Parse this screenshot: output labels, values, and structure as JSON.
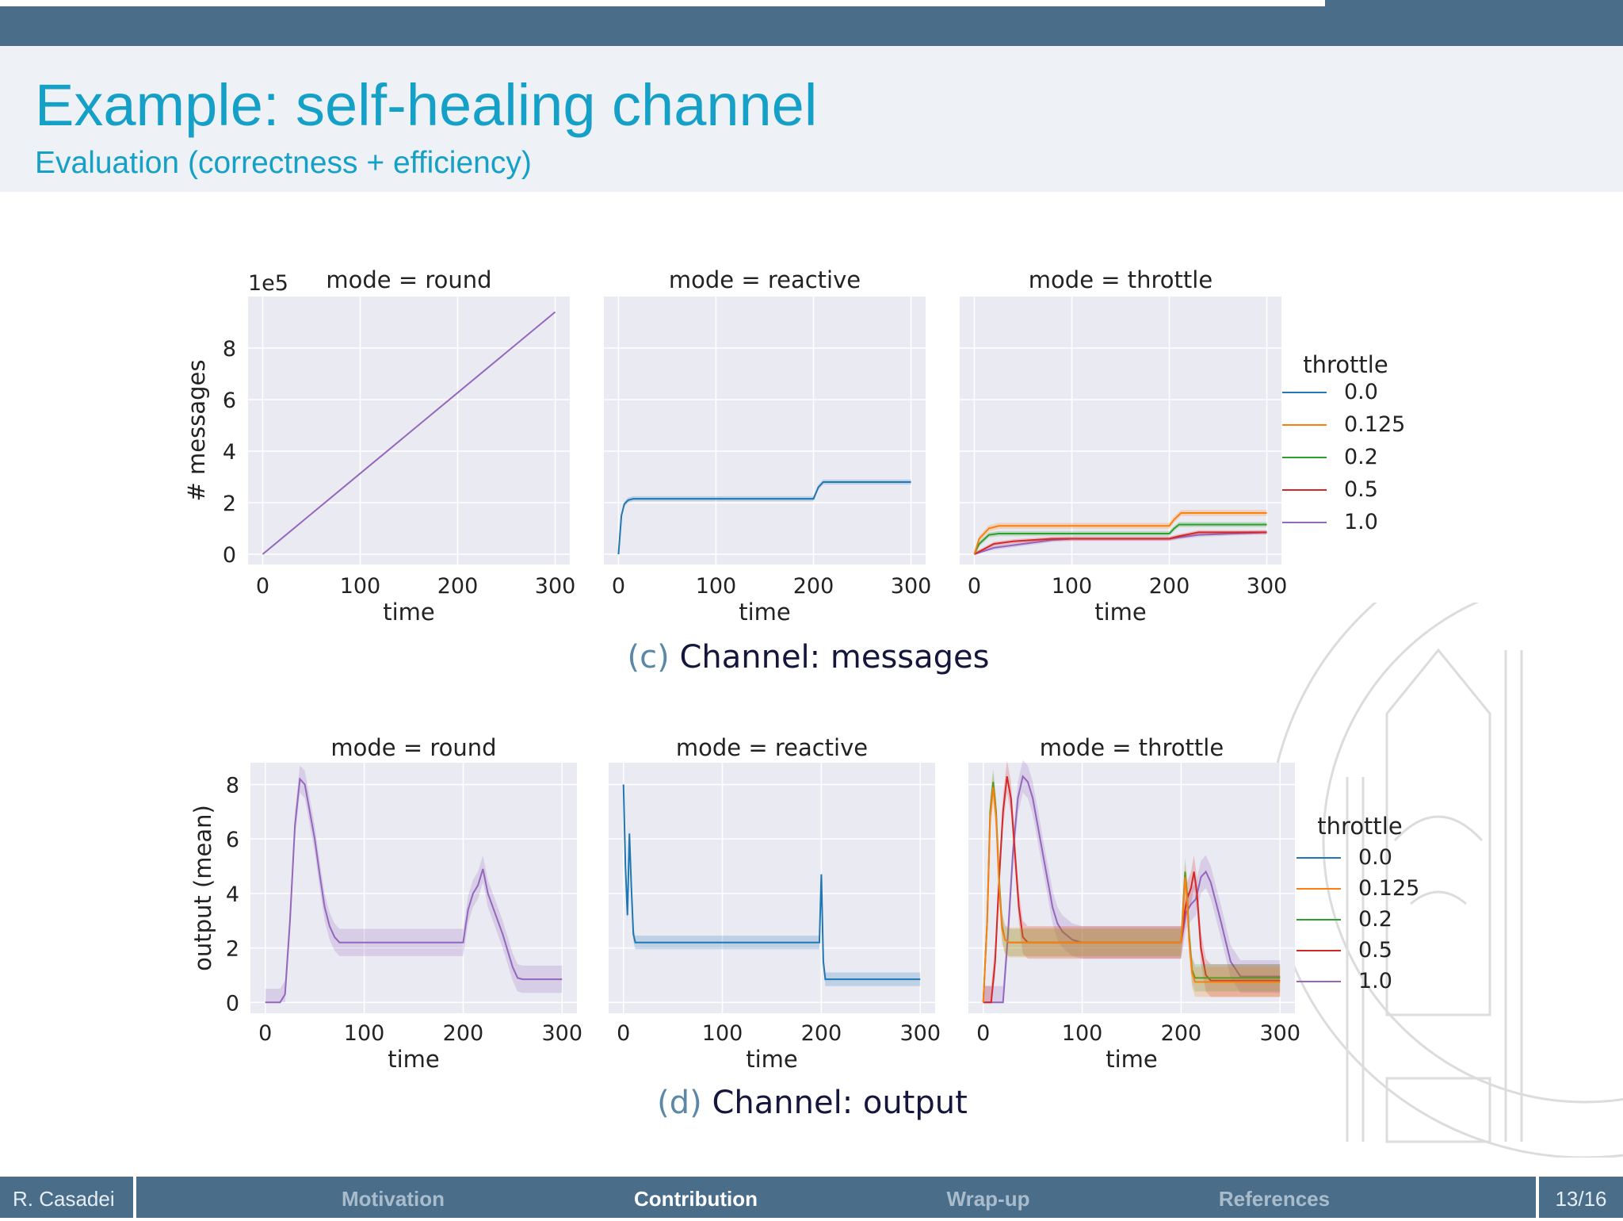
{
  "slide": {
    "title": "Example: self-healing channel",
    "subtitle": "Evaluation (correctness + efficiency)"
  },
  "footer": {
    "author": "R. Casadei",
    "nav": [
      {
        "label": "Motivation",
        "active": false
      },
      {
        "label": "Contribution",
        "active": true
      },
      {
        "label": "Wrap-up",
        "active": false
      },
      {
        "label": "References",
        "active": false
      }
    ],
    "page": "13/16"
  },
  "colors": {
    "bar": "#4a6d8a",
    "title": "#15a0c7",
    "panel_bg": "#eaeaf2",
    "caption_letter": "#5a88a6",
    "caption_text": "#14163c"
  },
  "chart_data": [
    {
      "type": "line",
      "caption_label": "(c)",
      "caption_text": "Channel: messages",
      "ylabel": "# messages",
      "yscale_note": "1e5",
      "yticks": [
        "0",
        "2",
        "4",
        "6",
        "8"
      ],
      "ylim": [
        -0.4,
        10.0
      ],
      "xlim": [
        -15,
        315
      ],
      "xticks": [
        "0",
        "100",
        "200",
        "300"
      ],
      "xlabel": "time",
      "legend": {
        "title": "throttle",
        "placement": "right",
        "entries": [
          "0.0",
          "0.125",
          "0.2",
          "0.5",
          "1.0"
        ],
        "colors": [
          "#1f77b4",
          "#ff7f0e",
          "#2ca02c",
          "#d62728",
          "#9467bd"
        ]
      },
      "panels": [
        {
          "title": "mode = round",
          "series": [
            {
              "color": "#9467bd",
              "band": 0,
              "x": [
                0,
                300
              ],
              "y": [
                0,
                9.4
              ]
            }
          ]
        },
        {
          "title": "mode = reactive",
          "series": [
            {
              "color": "#1f77b4",
              "band": 0.1,
              "x": [
                0,
                3,
                6,
                10,
                15,
                50,
                100,
                150,
                200,
                205,
                210,
                250,
                300
              ],
              "y": [
                0,
                1.5,
                1.95,
                2.1,
                2.15,
                2.15,
                2.15,
                2.15,
                2.15,
                2.6,
                2.8,
                2.8,
                2.8
              ]
            }
          ]
        },
        {
          "title": "mode = throttle",
          "series": [
            {
              "color": "#9467bd",
              "band": 0.08,
              "x": [
                0,
                20,
                40,
                60,
                80,
                100,
                150,
                200,
                230,
                300
              ],
              "y": [
                0,
                0.25,
                0.35,
                0.45,
                0.55,
                0.6,
                0.6,
                0.6,
                0.75,
                0.85
              ]
            },
            {
              "color": "#d62728",
              "band": 0.08,
              "x": [
                0,
                20,
                40,
                60,
                80,
                100,
                150,
                200,
                210,
                230,
                300
              ],
              "y": [
                0,
                0.4,
                0.5,
                0.55,
                0.6,
                0.6,
                0.6,
                0.6,
                0.7,
                0.85,
                0.85
              ]
            },
            {
              "color": "#2ca02c",
              "band": 0.1,
              "x": [
                0,
                5,
                15,
                25,
                100,
                200,
                205,
                210,
                300
              ],
              "y": [
                0,
                0.4,
                0.75,
                0.8,
                0.8,
                0.8,
                1.0,
                1.15,
                1.15
              ]
            },
            {
              "color": "#ff7f0e",
              "band": 0.12,
              "x": [
                0,
                5,
                15,
                25,
                100,
                200,
                205,
                212,
                300
              ],
              "y": [
                0,
                0.6,
                1.0,
                1.1,
                1.1,
                1.1,
                1.35,
                1.6,
                1.6
              ]
            }
          ]
        }
      ]
    },
    {
      "type": "line",
      "caption_label": "(d)",
      "caption_text": "Channel: output",
      "ylabel": "output (mean)",
      "yscale_note": "",
      "yticks": [
        "0",
        "2",
        "4",
        "6",
        "8"
      ],
      "ylim": [
        -0.4,
        8.8
      ],
      "xlim": [
        -15,
        315
      ],
      "xticks": [
        "0",
        "100",
        "200",
        "300"
      ],
      "xlabel": "time",
      "legend": {
        "title": "throttle",
        "placement": "right",
        "entries": [
          "0.0",
          "0.125",
          "0.2",
          "0.5",
          "1.0"
        ],
        "colors": [
          "#1f77b4",
          "#ff7f0e",
          "#2ca02c",
          "#d62728",
          "#9467bd"
        ]
      },
      "panels": [
        {
          "title": "mode = round",
          "series": [
            {
              "color": "#9467bd",
              "band": 0.5,
              "x": [
                0,
                15,
                20,
                25,
                30,
                35,
                40,
                45,
                50,
                55,
                60,
                65,
                70,
                75,
                80,
                100,
                150,
                200,
                205,
                210,
                215,
                220,
                225,
                230,
                240,
                250,
                255,
                260,
                300
              ],
              "y": [
                0,
                0,
                0.3,
                3,
                6.5,
                8.2,
                8.0,
                7.0,
                6.0,
                4.7,
                3.5,
                2.8,
                2.4,
                2.2,
                2.2,
                2.2,
                2.2,
                2.2,
                3.4,
                4.0,
                4.3,
                4.9,
                4.0,
                3.5,
                2.5,
                1.3,
                0.9,
                0.85,
                0.85
              ]
            }
          ]
        },
        {
          "title": "mode = reactive",
          "series": [
            {
              "color": "#1f77b4",
              "band": 0.25,
              "x": [
                0,
                2,
                4,
                6,
                8,
                10,
                12,
                15,
                50,
                100,
                150,
                195,
                198,
                200,
                202,
                204,
                206,
                250,
                300
              ],
              "y": [
                8,
                5,
                3.2,
                6.2,
                4.2,
                2.5,
                2.2,
                2.2,
                2.2,
                2.2,
                2.2,
                2.2,
                2.2,
                4.7,
                1.5,
                0.85,
                0.85,
                0.85,
                0.85
              ]
            }
          ]
        },
        {
          "title": "mode = throttle",
          "series": [
            {
              "color": "#9467bd",
              "band": 0.6,
              "x": [
                0,
                20,
                25,
                30,
                35,
                40,
                45,
                50,
                55,
                60,
                65,
                70,
                75,
                80,
                90,
                100,
                150,
                200,
                205,
                210,
                215,
                220,
                225,
                230,
                240,
                250,
                260,
                300
              ],
              "y": [
                0,
                0,
                2.5,
                5.5,
                7.5,
                8.3,
                8.1,
                7.5,
                6.5,
                5.5,
                4.5,
                3.5,
                2.9,
                2.6,
                2.3,
                2.2,
                2.2,
                2.2,
                3.3,
                3.6,
                3.8,
                4.6,
                4.8,
                4.4,
                3.0,
                1.5,
                0.95,
                0.95
              ]
            },
            {
              "color": "#d62728",
              "band": 0.6,
              "x": [
                0,
                8,
                12,
                16,
                20,
                24,
                28,
                32,
                36,
                40,
                45,
                50,
                100,
                150,
                200,
                203,
                206,
                210,
                213,
                216,
                220,
                225,
                230,
                300
              ],
              "y": [
                0,
                0,
                1.5,
                4.5,
                7.0,
                8.3,
                7.5,
                5.5,
                3.5,
                2.4,
                2.2,
                2.2,
                2.2,
                2.2,
                2.2,
                3.2,
                3.8,
                4.2,
                4.8,
                4.0,
                2.0,
                1.0,
                0.8,
                0.8
              ]
            },
            {
              "color": "#2ca02c",
              "band": 0.5,
              "x": [
                0,
                4,
                7,
                10,
                13,
                16,
                19,
                22,
                26,
                30,
                40,
                100,
                200,
                202,
                204,
                206,
                208,
                211,
                214,
                220,
                300
              ],
              "y": [
                0,
                3.0,
                7.0,
                8.1,
                7.0,
                4.5,
                2.8,
                2.3,
                2.2,
                2.2,
                2.2,
                2.2,
                2.2,
                3.5,
                4.8,
                4.0,
                2.5,
                1.2,
                0.9,
                0.9,
                0.9
              ]
            },
            {
              "color": "#ff7f0e",
              "band": 0.55,
              "x": [
                0,
                4,
                7,
                10,
                13,
                16,
                19,
                22,
                26,
                30,
                40,
                100,
                200,
                202,
                204,
                206,
                208,
                211,
                214,
                220,
                300
              ],
              "y": [
                0,
                3.0,
                6.8,
                7.9,
                6.8,
                4.3,
                2.7,
                2.3,
                2.2,
                2.2,
                2.2,
                2.2,
                2.2,
                3.3,
                4.6,
                3.8,
                2.3,
                1.1,
                0.75,
                0.75,
                0.75
              ]
            }
          ]
        }
      ]
    }
  ]
}
